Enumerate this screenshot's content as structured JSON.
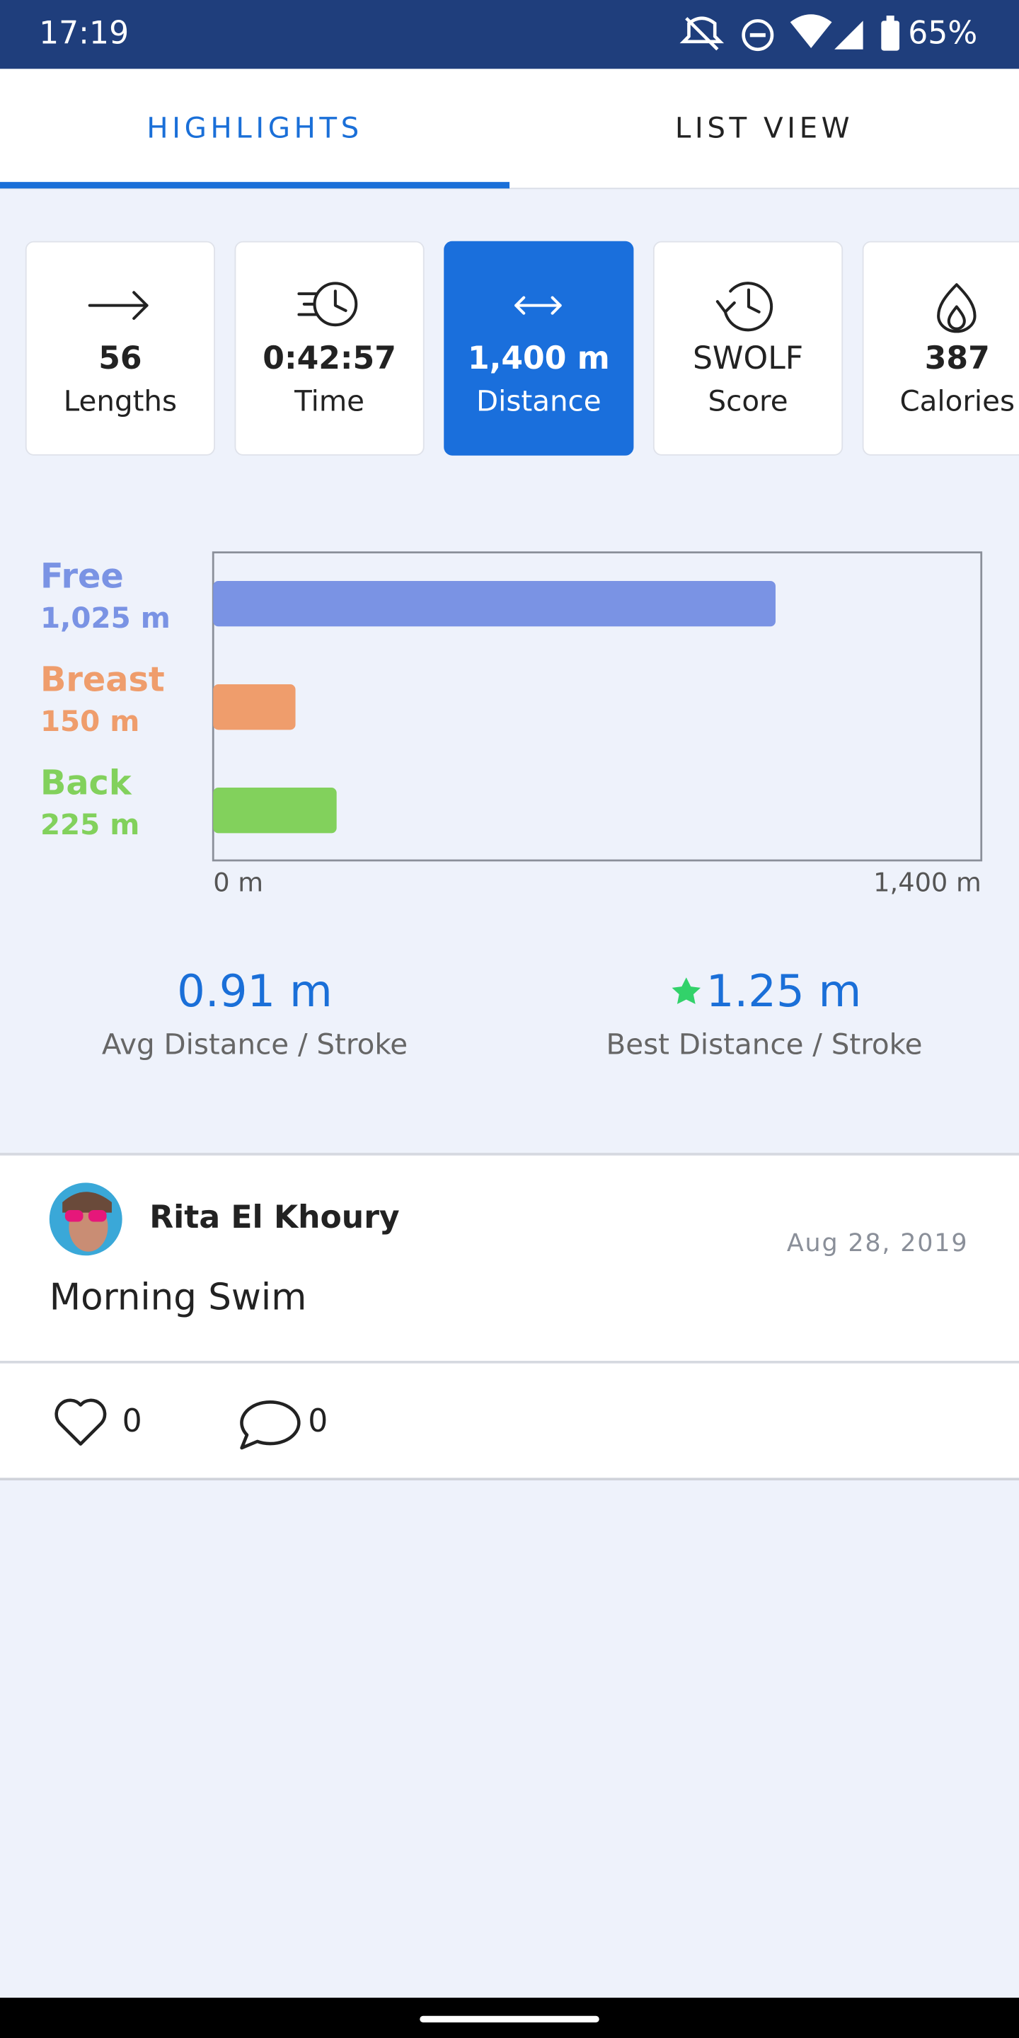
{
  "status_bar": {
    "time": "17:19",
    "battery": "65%"
  },
  "tabs": [
    "HIGHLIGHTS",
    "LIST VIEW"
  ],
  "active_tab": 0,
  "stats": [
    {
      "value": 56,
      "label": "Lengths"
    },
    {
      "value": "0:42:57",
      "label": "Time"
    },
    {
      "value": "1,400 m",
      "label": "Distance"
    },
    {
      "value": "SWOLF",
      "label": "Score"
    },
    {
      "value": 387,
      "label": "Calories"
    }
  ],
  "selected_stat": 2,
  "chart_data": {
    "type": "bar",
    "orientation": "horizontal",
    "categories": [
      "Free",
      "Breast",
      "Back"
    ],
    "values": [
      1025,
      150,
      225
    ],
    "value_labels": [
      "1,025 m",
      "150 m",
      "225 m"
    ],
    "colors": [
      "#7a93e4",
      "#ef9d6c",
      "#82d15c"
    ],
    "xlim": [
      0,
      1400
    ],
    "xticks": [
      {
        "value": 0,
        "label": "0 m"
      },
      {
        "value": 1400,
        "label": "1,400 m"
      }
    ]
  },
  "metrics": [
    {
      "value": "0.91 m",
      "label": "Avg Distance / Stroke"
    },
    {
      "value": "1.25 m",
      "label": "Best Distance / Stroke"
    }
  ],
  "post": {
    "author": "Rita El Khoury",
    "date": "Aug 28, 2019",
    "title": "Morning Swim",
    "likes": 0,
    "comments": 0
  }
}
